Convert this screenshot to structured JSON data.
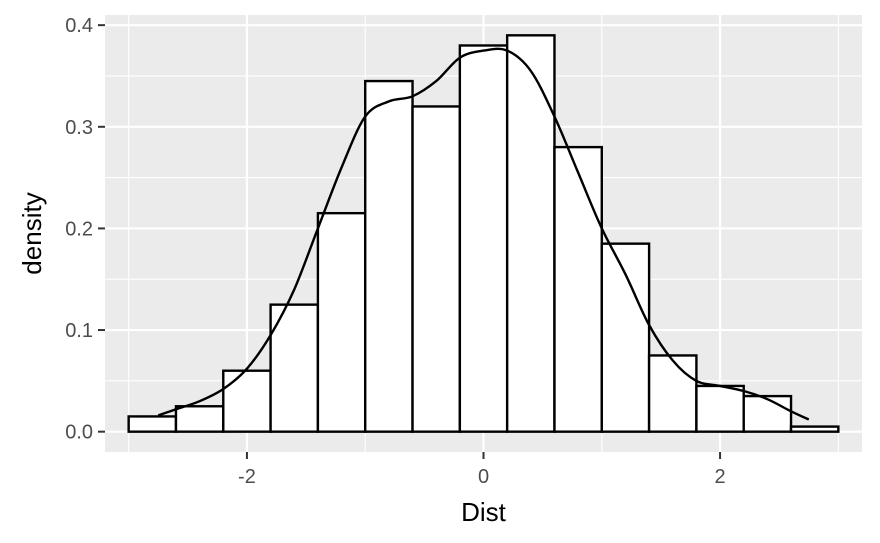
{
  "chart_data": {
    "type": "bar",
    "subtype": "histogram-with-density",
    "xlabel": "Dist",
    "ylabel": "density",
    "xlim": [
      -3.2,
      3.2
    ],
    "ylim": [
      -0.02,
      0.41
    ],
    "x_ticks": [
      {
        "value": -2,
        "label": "-2"
      },
      {
        "value": 0,
        "label": "0"
      },
      {
        "value": 2,
        "label": "2"
      }
    ],
    "y_ticks": [
      {
        "value": 0.0,
        "label": "0.0"
      },
      {
        "value": 0.1,
        "label": "0.1"
      },
      {
        "value": 0.2,
        "label": "0.2"
      },
      {
        "value": 0.3,
        "label": "0.3"
      },
      {
        "value": 0.4,
        "label": "0.4"
      }
    ],
    "bin_width": 0.4,
    "bins": [
      {
        "x0": -3.0,
        "x1": -2.6,
        "value": 0.015
      },
      {
        "x0": -2.6,
        "x1": -2.2,
        "value": 0.025
      },
      {
        "x0": -2.2,
        "x1": -1.8,
        "value": 0.06
      },
      {
        "x0": -1.8,
        "x1": -1.4,
        "value": 0.125
      },
      {
        "x0": -1.4,
        "x1": -1.0,
        "value": 0.215
      },
      {
        "x0": -1.0,
        "x1": -0.6,
        "value": 0.345
      },
      {
        "x0": -0.6,
        "x1": -0.2,
        "value": 0.32
      },
      {
        "x0": -0.2,
        "x1": 0.2,
        "value": 0.38
      },
      {
        "x0": 0.2,
        "x1": 0.6,
        "value": 0.39
      },
      {
        "x0": 0.6,
        "x1": 1.0,
        "value": 0.28
      },
      {
        "x0": 1.0,
        "x1": 1.4,
        "value": 0.185
      },
      {
        "x0": 1.4,
        "x1": 1.8,
        "value": 0.075
      },
      {
        "x0": 1.8,
        "x1": 2.2,
        "value": 0.045
      },
      {
        "x0": 2.2,
        "x1": 2.6,
        "value": 0.035
      },
      {
        "x0": 2.6,
        "x1": 3.0,
        "value": 0.005
      }
    ],
    "density_curve": {
      "x": [
        -2.75,
        -2.6,
        -2.4,
        -2.2,
        -2.0,
        -1.8,
        -1.6,
        -1.4,
        -1.2,
        -1.0,
        -0.8,
        -0.6,
        -0.4,
        -0.2,
        0.0,
        0.2,
        0.4,
        0.6,
        0.8,
        1.0,
        1.2,
        1.4,
        1.6,
        1.8,
        2.0,
        2.2,
        2.4,
        2.6,
        2.75
      ],
      "y": [
        0.016,
        0.022,
        0.03,
        0.042,
        0.062,
        0.095,
        0.14,
        0.2,
        0.26,
        0.31,
        0.325,
        0.33,
        0.345,
        0.368,
        0.375,
        0.375,
        0.355,
        0.31,
        0.255,
        0.2,
        0.155,
        0.105,
        0.07,
        0.05,
        0.045,
        0.04,
        0.032,
        0.02,
        0.012
      ]
    },
    "grid": true,
    "colors": {
      "panel_background": "#ebebeb",
      "grid": "#ffffff",
      "bar_fill": "#ffffff",
      "bar_stroke": "#000000",
      "curve": "#000000",
      "tick_label": "#4d4d4d",
      "tick_mark": "#333333",
      "axis_title": "#000000"
    }
  }
}
